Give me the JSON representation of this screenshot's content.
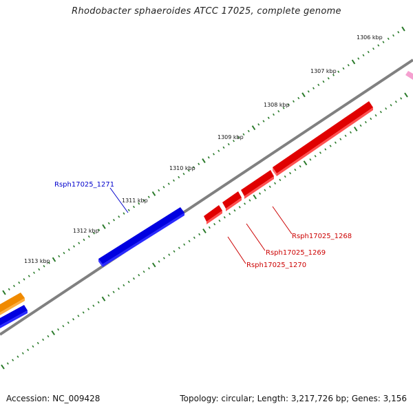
{
  "title": "Rhodobacter sphaeroides ATCC 17025, complete genome",
  "footer": {
    "accession": "Accession: NC_009428",
    "summary": "Topology: circular; Length: 3,217,726 bp; Genes: 3,156"
  },
  "scale_labels": [
    "1306 kbp",
    "1307 kbp",
    "1308 kbp",
    "1309 kbp",
    "1310 kbp",
    "1311 kbp",
    "1312 kbp",
    "1313 kbp"
  ],
  "genes": [
    {
      "label": "Rsph17025_1271",
      "color": "#0000cc"
    },
    {
      "label": "Rsph17025_1268",
      "color": "#cc0000"
    },
    {
      "label": "Rsph17025_1269",
      "color": "#cc0000"
    },
    {
      "label": "Rsph17025_1270",
      "color": "#cc0000"
    }
  ],
  "colors": {
    "backbone": "#808080",
    "tick": "#2a7a2a",
    "forward_gene": "#0000ee",
    "reverse_gene": "#ee0000",
    "other_gene": "#f08a00",
    "rna_marker": "#f5a0d0"
  }
}
